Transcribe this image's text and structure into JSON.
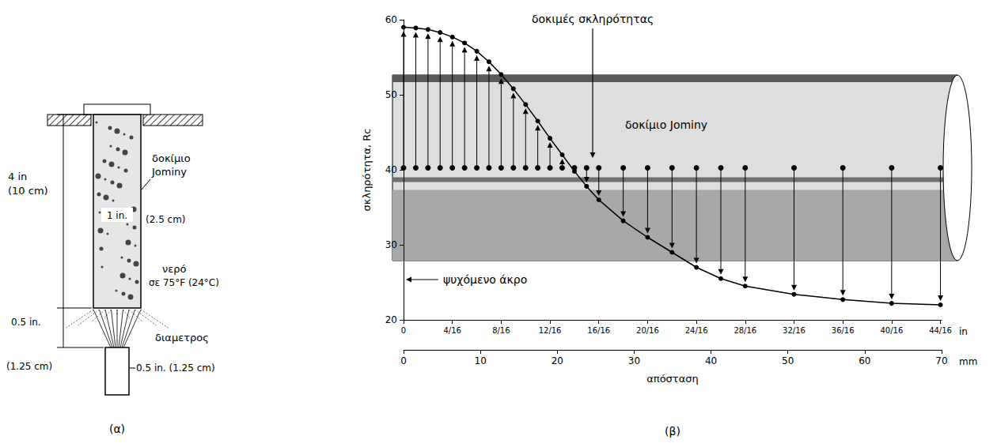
{
  "diagram": {
    "panel_label": "(α)",
    "specimen": [
      "δοκίμιο",
      "Jominy"
    ],
    "length": "4 in",
    "length_metric": "(10 cm)",
    "diameter": "1 in.",
    "diameter_metric": "(2.5 cm)",
    "water": [
      "νερό",
      "σε 75°F (24°C)"
    ],
    "gap": "0.5 in.",
    "gap_metric": "(1.25 cm)",
    "nozzle": "διαμετρος",
    "nozzle_size": "0.5 in. (1.25 cm)"
  },
  "chart_data": {
    "type": "line",
    "panel_label": "(β)",
    "y_label": "σκληρότητα, Rc",
    "x_label": "απόσταση",
    "x_unit": "mm",
    "x2_unit": "in",
    "annotations": {
      "tests": "δοκιμές σκληρότητας",
      "specimen": "δοκίμιο Jominy",
      "quenched_end": "ψυχόμενο άκρο"
    },
    "x": [
      0,
      1.59,
      3.18,
      4.76,
      6.35,
      7.94,
      9.53,
      11.11,
      12.7,
      14.29,
      15.88,
      17.46,
      19.05,
      20.64,
      22.23,
      23.81,
      25.4,
      28.58,
      31.75,
      34.93,
      38.1,
      41.28,
      44.45,
      50.8,
      57.15,
      63.5,
      69.85
    ],
    "values": [
      59.0,
      58.9,
      58.7,
      58.3,
      57.7,
      56.9,
      55.8,
      54.4,
      52.7,
      50.8,
      48.7,
      46.5,
      44.2,
      42.0,
      39.8,
      37.8,
      36.0,
      33.2,
      31.0,
      29.0,
      27.0,
      25.5,
      24.5,
      23.4,
      22.7,
      22.2,
      22.0
    ],
    "color": "#000000",
    "marker": "circle",
    "line_style": "solid",
    "xlim": [
      0,
      70
    ],
    "xticks": [
      0,
      10,
      20,
      30,
      40,
      50,
      60,
      70
    ],
    "x2ticks": [
      0,
      {
        "value": 6.35,
        "label": "4/16"
      },
      {
        "value": 12.7,
        "label": "8/16"
      },
      {
        "value": 19.05,
        "label": "12/16"
      },
      {
        "value": 25.4,
        "label": "16/16"
      },
      {
        "value": 31.75,
        "label": "20/16"
      },
      {
        "value": 38.1,
        "label": "24/16"
      },
      {
        "value": 44.45,
        "label": "28/16"
      },
      {
        "value": 50.8,
        "label": "32/16"
      },
      {
        "value": 57.15,
        "label": "36/16"
      },
      {
        "value": 63.5,
        "label": "40/16"
      },
      {
        "value": 69.85,
        "label": "44/16"
      }
    ],
    "ylim": [
      20,
      60
    ],
    "yticks": [
      20,
      30,
      40,
      50,
      60
    ],
    "grid": false
  }
}
